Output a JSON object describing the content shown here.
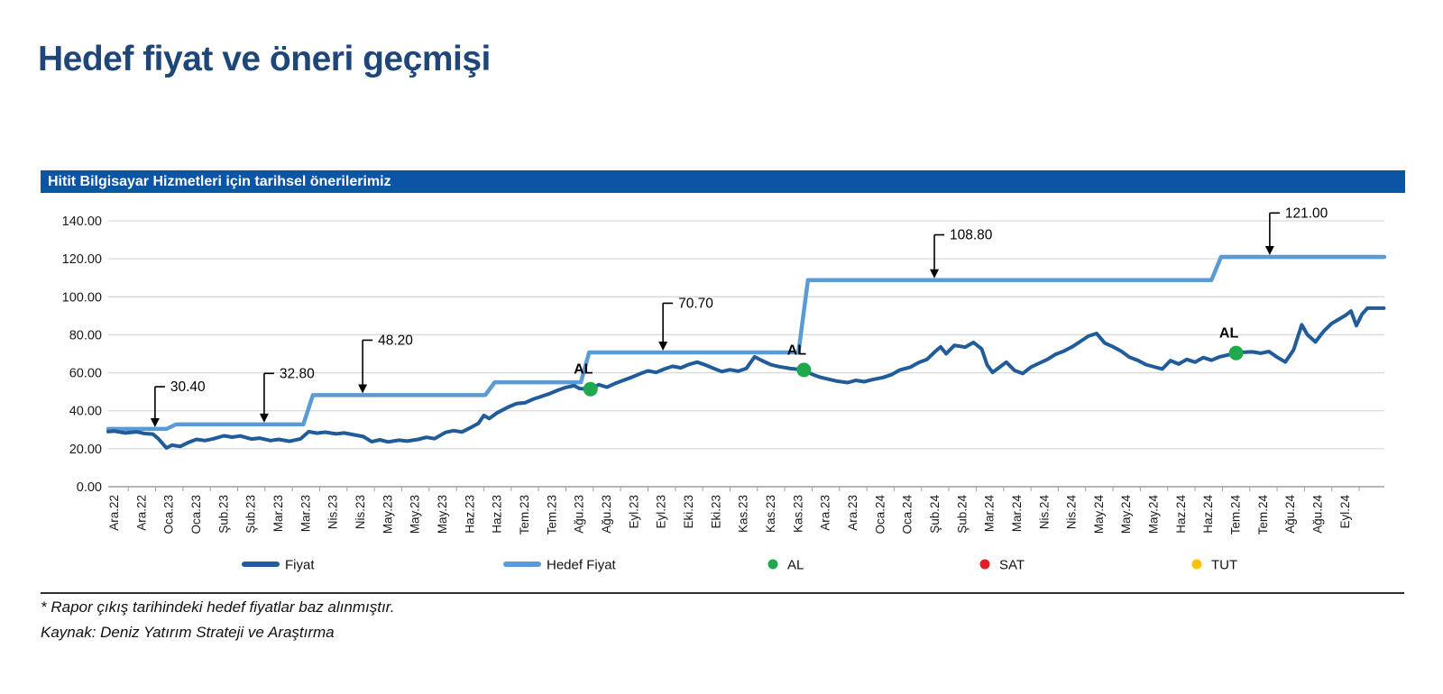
{
  "page": {
    "title": "Hedef fiyat ve öneri geçmişi",
    "footnote": "* Rapor çıkış tarihindeki hedef fiyatlar baz alınmıştır.",
    "source": "Kaynak: Deniz Yatırım Strateji ve Araştırma"
  },
  "panel": {
    "title": "Hitit Bilgisayar Hizmetleri için tarihsel önerilerimiz"
  },
  "colors": {
    "title_text": "#1E4679",
    "panel_bg": "#0C54A6",
    "panel_text": "#FFFFFF",
    "fiyat": "#1F5C99",
    "hedef": "#5B9BD5",
    "al": "#1FA84C",
    "sat": "#E01F26",
    "tut": "#FFC000",
    "grid": "#D9D9D9",
    "axis": "#9E9E9E",
    "tick_text": "#1A1A1A",
    "annotation": "#000000"
  },
  "legend": {
    "items": [
      {
        "label": "Fiyat",
        "type": "line",
        "color": "#1F5C99",
        "x": 268
      },
      {
        "label": "Hedef Fiyat",
        "type": "line",
        "color": "#5B9BD5",
        "x": 558
      },
      {
        "label": "AL",
        "type": "dot",
        "color": "#1FA84C",
        "x": 852
      },
      {
        "label": "SAT",
        "type": "dot",
        "color": "#E01F26",
        "x": 1087
      },
      {
        "label": "TUT",
        "type": "dot",
        "color": "#FFC000",
        "x": 1322
      }
    ]
  },
  "chart_data": {
    "type": "line",
    "title": "Hitit Bilgisayar Hizmetleri için tarihsel önerilerimiz",
    "ylim": [
      0,
      140
    ],
    "grid": true,
    "y_ticks": [
      {
        "value": 0,
        "label": "0.00"
      },
      {
        "value": 20,
        "label": "20.00"
      },
      {
        "value": 40,
        "label": "40.00"
      },
      {
        "value": 60,
        "label": "60.00"
      },
      {
        "value": 80,
        "label": "80.00"
      },
      {
        "value": 100,
        "label": "100.00"
      },
      {
        "value": 120,
        "label": "120.00"
      },
      {
        "value": 140,
        "label": "140.00"
      }
    ],
    "x_labels": [
      "Ara.22",
      "Ara.22",
      "Oca.23",
      "Oca.23",
      "Şub.23",
      "Şub.23",
      "Mar.23",
      "Mar.23",
      "Nis.23",
      "Nis.23",
      "May.23",
      "May.23",
      "May.23",
      "Haz.23",
      "Haz.23",
      "Tem.23",
      "Tem.23",
      "Ağu.23",
      "Ağu.23",
      "Eyl.23",
      "Eyl.23",
      "Eki.23",
      "Eki.23",
      "Kas.23",
      "Kas.23",
      "Kas.23",
      "Ara.23",
      "Ara.23",
      "Oca.24",
      "Oca.24",
      "Şub.24",
      "Şub.24",
      "Mar.24",
      "Mar.24",
      "Nis.24",
      "Nis.24",
      "May.24",
      "May.24",
      "May.24",
      "Haz.24",
      "Haz.24",
      "Tem.24",
      "Tem.24",
      "Ağu.24",
      "Ağu.24",
      "Eyl.24"
    ],
    "series": [
      {
        "name": "Fiyat",
        "points": [
          [
            -0.23,
            29.0
          ],
          [
            0,
            29.3
          ],
          [
            0.4,
            28.3
          ],
          [
            0.8,
            28.9
          ],
          [
            1.1,
            28.0
          ],
          [
            1.4,
            27.7
          ],
          [
            1.6,
            25.3
          ],
          [
            1.9,
            20.4
          ],
          [
            2.1,
            21.9
          ],
          [
            2.4,
            21.2
          ],
          [
            2.7,
            23.3
          ],
          [
            3.0,
            24.9
          ],
          [
            3.3,
            24.3
          ],
          [
            3.6,
            25.2
          ],
          [
            4.0,
            26.8
          ],
          [
            4.3,
            26.1
          ],
          [
            4.6,
            26.7
          ],
          [
            5.0,
            25.1
          ],
          [
            5.3,
            25.6
          ],
          [
            5.7,
            24.3
          ],
          [
            6.0,
            24.9
          ],
          [
            6.4,
            23.9
          ],
          [
            6.8,
            25.2
          ],
          [
            7.1,
            29.0
          ],
          [
            7.4,
            28.2
          ],
          [
            7.7,
            28.7
          ],
          [
            8.1,
            27.8
          ],
          [
            8.4,
            28.3
          ],
          [
            8.7,
            27.5
          ],
          [
            9.1,
            26.4
          ],
          [
            9.4,
            23.7
          ],
          [
            9.7,
            24.7
          ],
          [
            10.0,
            23.6
          ],
          [
            10.4,
            24.5
          ],
          [
            10.7,
            24.0
          ],
          [
            11.1,
            24.9
          ],
          [
            11.4,
            26.0
          ],
          [
            11.7,
            25.3
          ],
          [
            12.1,
            28.6
          ],
          [
            12.4,
            29.5
          ],
          [
            12.7,
            28.8
          ],
          [
            13.0,
            31.0
          ],
          [
            13.3,
            33.3
          ],
          [
            13.5,
            37.5
          ],
          [
            13.7,
            35.9
          ],
          [
            14.0,
            39.0
          ],
          [
            14.2,
            40.5
          ],
          [
            14.4,
            42.0
          ],
          [
            14.7,
            43.8
          ],
          [
            15.0,
            44.2
          ],
          [
            15.3,
            46.1
          ],
          [
            15.6,
            47.5
          ],
          [
            15.9,
            49.0
          ],
          [
            16.2,
            50.8
          ],
          [
            16.5,
            52.3
          ],
          [
            16.8,
            53.2
          ],
          [
            17.0,
            51.7
          ],
          [
            17.4,
            51.4
          ],
          [
            17.7,
            53.7
          ],
          [
            18.0,
            52.4
          ],
          [
            18.3,
            54.4
          ],
          [
            18.6,
            56.0
          ],
          [
            18.9,
            57.6
          ],
          [
            19.2,
            59.4
          ],
          [
            19.5,
            61.0
          ],
          [
            19.8,
            60.2
          ],
          [
            20.1,
            62.0
          ],
          [
            20.4,
            63.4
          ],
          [
            20.7,
            62.6
          ],
          [
            21.0,
            64.4
          ],
          [
            21.3,
            65.6
          ],
          [
            21.6,
            64.1
          ],
          [
            21.9,
            62.3
          ],
          [
            22.2,
            60.6
          ],
          [
            22.5,
            61.6
          ],
          [
            22.8,
            60.8
          ],
          [
            23.1,
            62.3
          ],
          [
            23.4,
            68.4
          ],
          [
            23.7,
            66.2
          ],
          [
            24.0,
            64.2
          ],
          [
            24.3,
            63.2
          ],
          [
            24.7,
            62.2
          ],
          [
            25.2,
            61.5
          ],
          [
            25.5,
            59.2
          ],
          [
            25.8,
            57.6
          ],
          [
            26.1,
            56.6
          ],
          [
            26.4,
            55.6
          ],
          [
            26.8,
            54.8
          ],
          [
            27.1,
            56.0
          ],
          [
            27.4,
            55.3
          ],
          [
            27.7,
            56.4
          ],
          [
            28.1,
            57.5
          ],
          [
            28.4,
            59.0
          ],
          [
            28.7,
            61.4
          ],
          [
            29.1,
            63.0
          ],
          [
            29.4,
            65.4
          ],
          [
            29.7,
            67.0
          ],
          [
            30.0,
            71.2
          ],
          [
            30.2,
            73.6
          ],
          [
            30.4,
            70.0
          ],
          [
            30.7,
            74.4
          ],
          [
            31.1,
            73.5
          ],
          [
            31.4,
            76.0
          ],
          [
            31.7,
            72.5
          ],
          [
            31.9,
            64.0
          ],
          [
            32.1,
            60.2
          ],
          [
            32.4,
            63.4
          ],
          [
            32.6,
            65.6
          ],
          [
            32.9,
            61.2
          ],
          [
            33.2,
            59.6
          ],
          [
            33.5,
            63.0
          ],
          [
            33.8,
            65.0
          ],
          [
            34.1,
            67.0
          ],
          [
            34.4,
            69.7
          ],
          [
            34.7,
            71.4
          ],
          [
            35.0,
            73.6
          ],
          [
            35.3,
            76.4
          ],
          [
            35.6,
            79.3
          ],
          [
            35.9,
            80.7
          ],
          [
            36.2,
            75.6
          ],
          [
            36.5,
            73.7
          ],
          [
            36.8,
            71.4
          ],
          [
            37.1,
            68.2
          ],
          [
            37.4,
            66.6
          ],
          [
            37.7,
            64.3
          ],
          [
            38.0,
            63.1
          ],
          [
            38.3,
            62.0
          ],
          [
            38.6,
            66.4
          ],
          [
            38.9,
            64.6
          ],
          [
            39.2,
            67.0
          ],
          [
            39.5,
            65.6
          ],
          [
            39.8,
            68.0
          ],
          [
            40.1,
            66.6
          ],
          [
            40.4,
            68.4
          ],
          [
            40.7,
            69.4
          ],
          [
            41.0,
            70.4
          ],
          [
            41.3,
            70.8
          ],
          [
            41.6,
            71.0
          ],
          [
            41.9,
            70.3
          ],
          [
            42.2,
            71.2
          ],
          [
            42.5,
            68.2
          ],
          [
            42.8,
            65.7
          ],
          [
            43.1,
            72.0
          ],
          [
            43.4,
            85.3
          ],
          [
            43.6,
            80.2
          ],
          [
            43.9,
            76.2
          ],
          [
            44.2,
            81.8
          ],
          [
            44.5,
            86.0
          ],
          [
            44.8,
            88.5
          ],
          [
            45.0,
            90.2
          ],
          [
            45.2,
            92.5
          ],
          [
            45.4,
            84.8
          ],
          [
            45.6,
            90.8
          ],
          [
            45.8,
            94.0
          ],
          [
            46.4,
            94.0
          ]
        ]
      },
      {
        "name": "Hedef Fiyat",
        "points": [
          [
            -0.23,
            30.4
          ],
          [
            1.9,
            30.4
          ],
          [
            2.25,
            32.8
          ],
          [
            6.9,
            32.8
          ],
          [
            7.25,
            48.2
          ],
          [
            13.55,
            48.2
          ],
          [
            13.9,
            55.0
          ],
          [
            17.05,
            55.0
          ],
          [
            17.35,
            70.7
          ],
          [
            25.0,
            70.7
          ],
          [
            25.35,
            108.8
          ],
          [
            40.1,
            108.8
          ],
          [
            40.45,
            121.0
          ],
          [
            46.42,
            121.0
          ]
        ]
      }
    ],
    "markers": [
      {
        "label": "AL",
        "t": 17.4,
        "value": 51.4
      },
      {
        "label": "AL",
        "t": 25.2,
        "value": 61.5
      },
      {
        "label": "AL",
        "t": 41.0,
        "value": 70.4
      }
    ],
    "callouts": [
      {
        "label": "30.40",
        "t": 1.48,
        "level": 30.4,
        "label_value": 55.0
      },
      {
        "label": "32.80",
        "t": 5.47,
        "level": 32.8,
        "label_value": 62.0
      },
      {
        "label": "48.20",
        "t": 9.07,
        "level": 48.2,
        "label_value": 79.5
      },
      {
        "label": "70.70",
        "t": 20.05,
        "level": 70.7,
        "label_value": 99.0
      },
      {
        "label": "108.80",
        "t": 29.97,
        "level": 108.8,
        "label_value": 135.0
      },
      {
        "label": "121.00",
        "t": 42.23,
        "level": 121.0,
        "label_value": 146.5
      }
    ]
  }
}
